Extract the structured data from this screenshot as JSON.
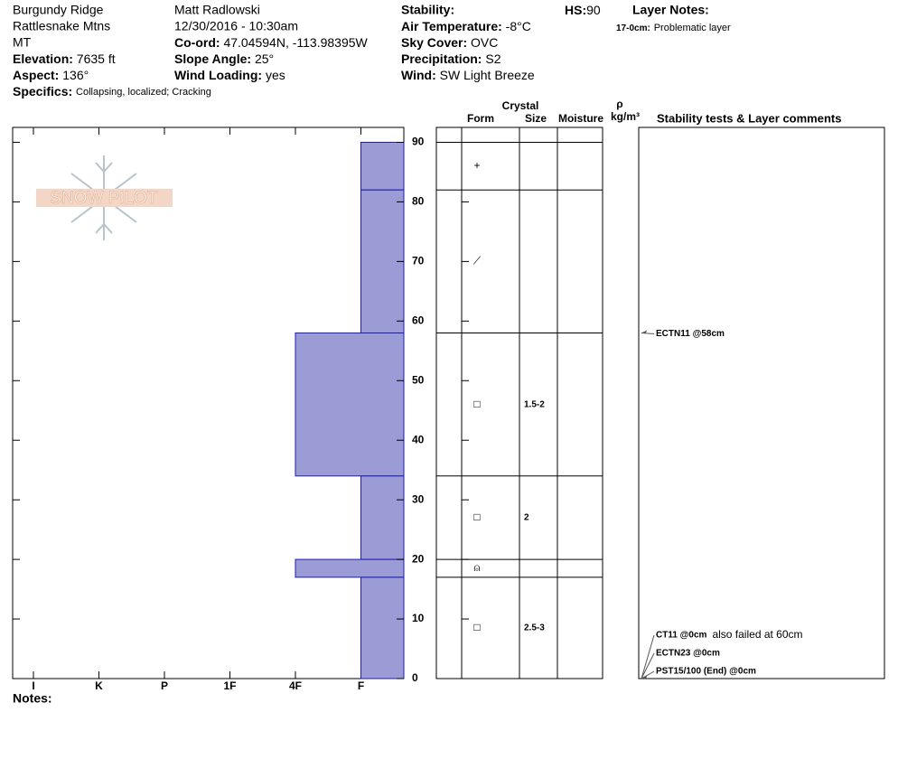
{
  "header": {
    "location": "Burgundy Ridge",
    "range": "Rattlesnake Mtns",
    "state": "MT",
    "elevation_label": "Elevation:",
    "elevation": "7635 ft",
    "aspect_label": "Aspect:",
    "aspect": "136°",
    "specifics_label": "Specifics:",
    "specifics": "Collapsing, localized;  Cracking",
    "observer": "Matt Radlowski",
    "datetime": "12/30/2016 - 10:30am",
    "coord_label": "Co-ord:",
    "coord": "47.04594N, -113.98395W",
    "slope_label": "Slope Angle:",
    "slope": "25°",
    "wind_loading_label": "Wind Loading:",
    "wind_loading": "yes",
    "stability_label": "Stability:",
    "air_temp_label": "Air Temperature:",
    "air_temp": "-8°C",
    "sky_label": "Sky Cover:",
    "sky": "OVC",
    "precip_label": "Precipitation:",
    "precip": "S2",
    "wind_label": "Wind:",
    "wind": "SW Light Breeze",
    "hs_label": "HS:",
    "hs": 90,
    "layer_notes_label": "Layer Notes:",
    "layer_note_depth": "17-0cm:",
    "layer_note": "Problematic layer",
    "logo": "SNOW PILOT"
  },
  "table_header": {
    "crystal": "Crystal",
    "form": "Form",
    "size": "Size",
    "moisture": "Moisture",
    "density_symbol": "ρ",
    "density_unit": "kg/m³",
    "comments": "Stability tests & Layer comments"
  },
  "notes_label": "Notes:",
  "chart_data": {
    "type": "hardness-profile",
    "hardness_categories": [
      "I",
      "K",
      "P",
      "1F",
      "4F",
      "F"
    ],
    "ylim": [
      0,
      92.5
    ],
    "yticks": [
      0,
      10,
      20,
      30,
      40,
      50,
      60,
      70,
      80,
      90
    ],
    "color": "#9b9bd5",
    "layers": [
      {
        "top": 90,
        "bottom": 82,
        "hardness": "F",
        "form": "+"
      },
      {
        "top": 82,
        "bottom": 58,
        "hardness": "F",
        "form": "⟋"
      },
      {
        "top": 58,
        "bottom": 34,
        "hardness": "4F",
        "form": "□",
        "size": "1.5-2"
      },
      {
        "top": 34,
        "bottom": 20,
        "hardness": "F",
        "form": "□",
        "size": "2"
      },
      {
        "top": 20,
        "bottom": 17,
        "hardness": "4F",
        "form": "⍝"
      },
      {
        "top": 17,
        "bottom": 0,
        "hardness": "F",
        "form": "□",
        "size": "2.5-3"
      }
    ],
    "stability_tests": [
      {
        "label": "ECTN11 @58cm",
        "depth": 58
      },
      {
        "label": "CT11 @0cm",
        "comment": "also failed at 60cm",
        "depth": 0
      },
      {
        "label": "ECTN23 @0cm",
        "depth": 0
      },
      {
        "label": "PST15/100 (End) @0cm",
        "depth": 0
      }
    ]
  }
}
